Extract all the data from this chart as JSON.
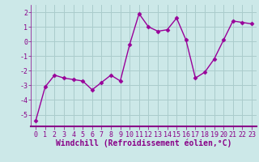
{
  "x": [
    0,
    1,
    2,
    3,
    4,
    5,
    6,
    7,
    8,
    9,
    10,
    11,
    12,
    13,
    14,
    15,
    16,
    17,
    18,
    19,
    20,
    21,
    22,
    23
  ],
  "y": [
    -5.4,
    -3.1,
    -2.3,
    -2.5,
    -2.6,
    -2.7,
    -3.3,
    -2.8,
    -2.3,
    -2.7,
    -0.2,
    1.9,
    1.0,
    0.7,
    0.8,
    1.6,
    0.1,
    -2.5,
    -2.1,
    -1.2,
    0.1,
    1.4,
    1.3,
    1.2
  ],
  "line_color": "#990099",
  "marker": "D",
  "marker_size": 2.5,
  "bg_color": "#cce8e8",
  "grid_color": "#aacccc",
  "xlabel": "Windchill (Refroidissement éolien,°C)",
  "ylim": [
    -5.8,
    2.5
  ],
  "xlim": [
    -0.5,
    23.5
  ],
  "yticks": [
    -5,
    -4,
    -3,
    -2,
    -1,
    0,
    1,
    2
  ],
  "xticks": [
    0,
    1,
    2,
    3,
    4,
    5,
    6,
    7,
    8,
    9,
    10,
    11,
    12,
    13,
    14,
    15,
    16,
    17,
    18,
    19,
    20,
    21,
    22,
    23
  ],
  "tick_fontsize": 6,
  "xlabel_fontsize": 7,
  "line_width": 1.0,
  "axis_color": "#880088"
}
